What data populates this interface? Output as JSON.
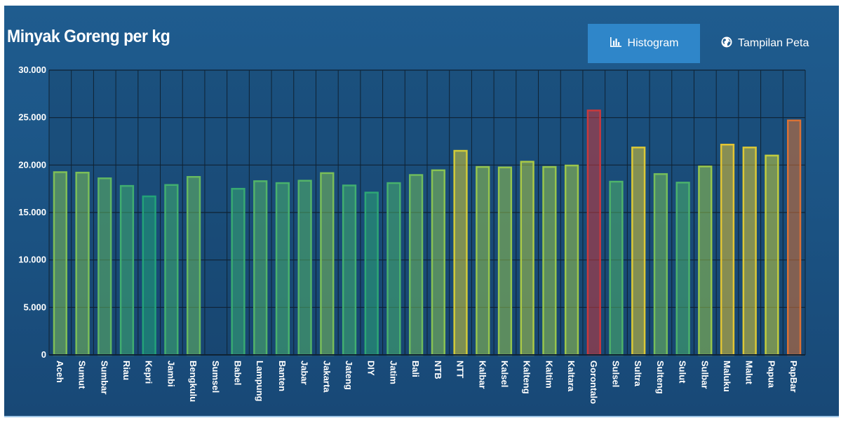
{
  "header": {
    "title": "Minyak Goreng per kg",
    "tabs": [
      {
        "label": "Histogram",
        "icon": "bar-chart-icon",
        "active": true
      },
      {
        "label": "Tampilan Peta",
        "icon": "globe-icon",
        "active": false
      }
    ]
  },
  "chart_data": {
    "type": "bar",
    "title": "Minyak Goreng per kg",
    "xlabel": "",
    "ylabel": "",
    "ylim": [
      0,
      30000
    ],
    "yticks": [
      0,
      5000,
      10000,
      15000,
      20000,
      25000,
      30000
    ],
    "ytick_labels": [
      "0",
      "5.000",
      "10.000",
      "15.000",
      "20.000",
      "25.000",
      "30.000"
    ],
    "grid": true,
    "categories": [
      "Aceh",
      "Sumut",
      "Sumbar",
      "Riau",
      "Kepri",
      "Jambi",
      "Bengkulu",
      "Sumsel",
      "Babel",
      "Lampung",
      "Banten",
      "Jabar",
      "Jakarta",
      "Jateng",
      "DIY",
      "Jatim",
      "Bali",
      "NTB",
      "NTT",
      "Kalbar",
      "Kalsel",
      "Kalteng",
      "Kaltim",
      "Kaltara",
      "Gorontalo",
      "Sulsel",
      "Sultra",
      "Sulteng",
      "Sulut",
      "Sulbar",
      "Maluku",
      "Malut",
      "Papua",
      "PapBar"
    ],
    "values": [
      19250,
      19200,
      18600,
      17800,
      16700,
      17900,
      18750,
      0,
      17500,
      18300,
      18100,
      18350,
      19150,
      17850,
      17100,
      18100,
      18950,
      19450,
      21500,
      19800,
      19750,
      20350,
      19800,
      19950,
      25750,
      18250,
      21850,
      19050,
      18150,
      19850,
      22150,
      21850,
      21000,
      24700
    ],
    "colors": {
      "gradient": [
        "#1ea07a",
        "#46b06e",
        "#8fc450",
        "#c8ce3c",
        "#f0c030",
        "#e38a32",
        "#c9363c"
      ],
      "grid": "#0f2233"
    }
  }
}
